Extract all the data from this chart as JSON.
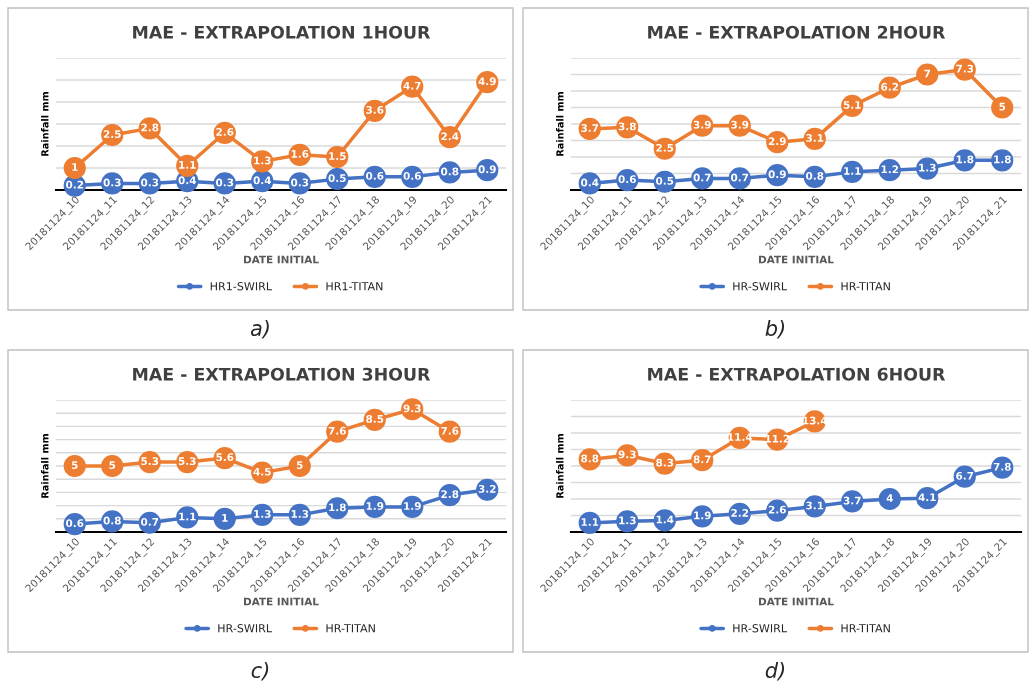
{
  "chart_data": [
    {
      "type": "line",
      "title": "MAE - EXTRAPOLATION 1HOUR",
      "xlabel": "DATE INITIAL",
      "ylabel": "Rainfall mm",
      "annotations": [
        "a)"
      ],
      "categories": [
        "20181124_10",
        "20181124_11",
        "20181124_12",
        "20181124_13",
        "20181124_14",
        "20181124_15",
        "20181124_16",
        "20181124_17",
        "20181124_18",
        "20181124_19",
        "20181124_20",
        "20181124_21"
      ],
      "series": [
        {
          "name": "HR1-SWIRL",
          "color": "#4472c4",
          "values": [
            0.2,
            0.3,
            0.3,
            0.4,
            0.3,
            0.4,
            0.3,
            0.5,
            0.6,
            0.6,
            0.8,
            0.9
          ]
        },
        {
          "name": "HR1-TITAN",
          "color": "#ed7d31",
          "values": [
            1,
            2.5,
            2.8,
            1.1,
            2.6,
            1.3,
            1.6,
            1.5,
            3.6,
            4.7,
            2.4,
            4.9
          ]
        }
      ],
      "ylim": [
        0,
        6
      ],
      "yticks": [
        {
          "value": 0,
          "label": null
        },
        {
          "value": 1,
          "label": null
        },
        {
          "value": 2,
          "label": null
        },
        {
          "value": 3,
          "label": null
        },
        {
          "value": 4,
          "label": null
        },
        {
          "value": 5,
          "label": null
        },
        {
          "value": 6,
          "label": null
        }
      ],
      "tick_labels": "x",
      "grid": "y",
      "legend": "bottom",
      "marker": "circle",
      "line_style": "solid",
      "data_labels": true
    },
    {
      "type": "line",
      "title": "MAE - EXTRAPOLATION 2HOUR",
      "xlabel": "DATE INITIAL",
      "ylabel": "Rainfall mm",
      "annotations": [
        "b)"
      ],
      "categories": [
        "20181124_10",
        "20181124_11",
        "20181124_12",
        "20181124_13",
        "20181124_14",
        "20181124_15",
        "20181124_16",
        "20181124_17",
        "20181124_18",
        "20181124_19",
        "20181124_20",
        "20181124_21"
      ],
      "series": [
        {
          "name": "HR-SWIRL",
          "color": "#4472c4",
          "values": [
            0.4,
            0.6,
            0.5,
            0.7,
            0.7,
            0.9,
            0.8,
            1.1,
            1.2,
            1.3,
            1.8,
            1.8
          ]
        },
        {
          "name": "HR-TITAN",
          "color": "#ed7d31",
          "values": [
            3.7,
            3.8,
            2.5,
            3.9,
            3.9,
            2.9,
            3.1,
            5.1,
            6.2,
            7,
            7.3,
            5
          ]
        }
      ],
      "ylim": [
        0,
        8
      ],
      "yticks": [
        {
          "value": 0,
          "label": null
        },
        {
          "value": 1,
          "label": null
        },
        {
          "value": 2,
          "label": null
        },
        {
          "value": 3,
          "label": null
        },
        {
          "value": 4,
          "label": null
        },
        {
          "value": 5,
          "label": null
        },
        {
          "value": 6,
          "label": null
        },
        {
          "value": 7,
          "label": null
        },
        {
          "value": 8,
          "label": null
        }
      ],
      "tick_labels": "x",
      "grid": "y",
      "legend": "bottom",
      "marker": "circle",
      "line_style": "solid",
      "data_labels": true
    },
    {
      "type": "line",
      "title": "MAE - EXTRAPOLATION 3HOUR",
      "xlabel": "DATE INITIAL",
      "ylabel": "Rainfall mm",
      "annotations": [
        "c)"
      ],
      "categories": [
        "20181124_10",
        "20181124_11",
        "20181124_12",
        "20181124_13",
        "20181124_14",
        "20181124_15",
        "20181124_16",
        "20181124_17",
        "20181124_18",
        "20181124_19",
        "20181124_20",
        "20181124_21"
      ],
      "series": [
        {
          "name": "HR-SWIRL",
          "color": "#4472c4",
          "values": [
            0.6,
            0.8,
            0.7,
            1.1,
            1,
            1.3,
            1.3,
            1.8,
            1.9,
            1.9,
            2.8,
            3.2
          ]
        },
        {
          "name": "HR-TITAN",
          "color": "#ed7d31",
          "values": [
            5,
            5,
            5.3,
            5.3,
            5.6,
            4.5,
            5,
            7.6,
            8.5,
            9.3,
            7.6,
            null
          ]
        }
      ],
      "ylim": [
        0,
        10
      ],
      "yticks": [
        {
          "value": 0,
          "label": null
        },
        {
          "value": 1,
          "label": null
        },
        {
          "value": 2,
          "label": null
        },
        {
          "value": 3,
          "label": null
        },
        {
          "value": 4,
          "label": null
        },
        {
          "value": 5,
          "label": null
        },
        {
          "value": 6,
          "label": null
        },
        {
          "value": 7,
          "label": null
        },
        {
          "value": 8,
          "label": null
        },
        {
          "value": 9,
          "label": null
        },
        {
          "value": 10,
          "label": null
        }
      ],
      "tick_labels": "x",
      "grid": "y",
      "legend": "bottom",
      "marker": "circle",
      "line_style": "solid",
      "data_labels": true
    },
    {
      "type": "line",
      "title": "MAE - EXTRAPOLATION 6HOUR",
      "xlabel": "DATE INITIAL",
      "ylabel": "Rainfall mm",
      "annotations": [
        "d)"
      ],
      "categories": [
        "20181124_10",
        "20181124_11",
        "20181124_12",
        "20181124_13",
        "20181124_14",
        "20181124_15",
        "20181124_16",
        "20181124_17",
        "20181124_18",
        "20181124_19",
        "20181124_20",
        "20181124_21"
      ],
      "series": [
        {
          "name": "HR-SWIRL",
          "color": "#4472c4",
          "values": [
            1.1,
            1.3,
            1.4,
            1.9,
            2.2,
            2.6,
            3.1,
            3.7,
            4,
            4.1,
            6.7,
            7.8
          ]
        },
        {
          "name": "HR-TITAN",
          "color": "#ed7d31",
          "values": [
            8.8,
            9.3,
            8.3,
            8.7,
            11.4,
            11.2,
            13.4,
            null,
            null,
            null,
            null,
            null
          ]
        }
      ],
      "ylim": [
        0,
        16
      ],
      "yticks": [
        {
          "value": 0,
          "label": null
        },
        {
          "value": 2,
          "label": null
        },
        {
          "value": 4,
          "label": null
        },
        {
          "value": 6,
          "label": null
        },
        {
          "value": 8,
          "label": null
        },
        {
          "value": 10,
          "label": null
        },
        {
          "value": 12,
          "label": null
        },
        {
          "value": 14,
          "label": null
        },
        {
          "value": 16,
          "label": null
        }
      ],
      "tick_labels": "x",
      "grid": "y",
      "legend": "bottom",
      "marker": "circle",
      "line_style": "solid",
      "data_labels": true
    }
  ]
}
